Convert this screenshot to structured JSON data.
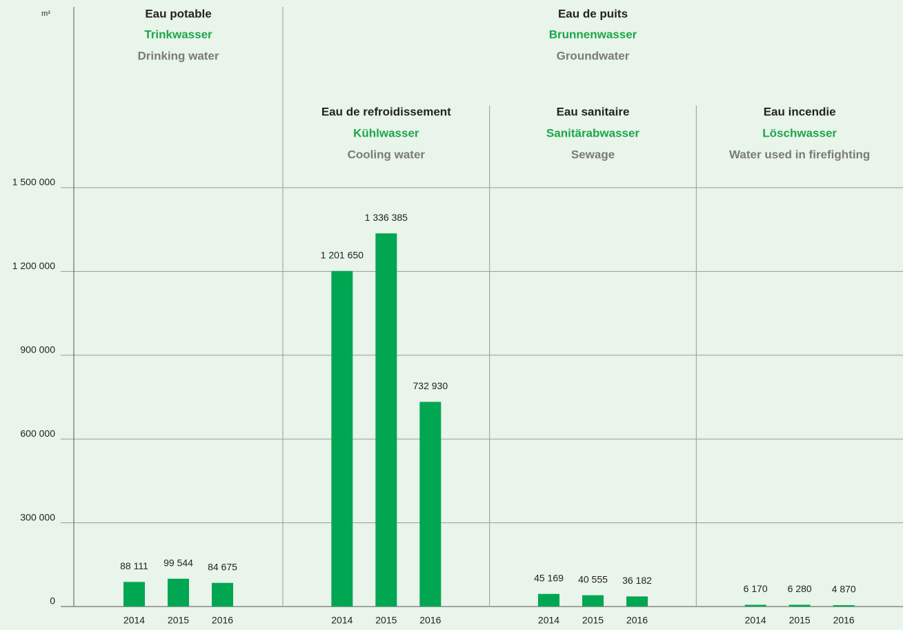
{
  "chart_data": {
    "type": "bar",
    "y_label": "m³",
    "color": "#00a651",
    "ylim": [
      0,
      1500000
    ],
    "yticks": [
      0,
      {
        "value": 300000,
        "label": "300 000"
      },
      {
        "value": 600000,
        "label": "600 000"
      },
      {
        "value": 900000,
        "label": "900 000"
      },
      {
        "value": 1200000,
        "label": "1 200 000"
      },
      {
        "value": 1500000,
        "label": "1 500 000"
      }
    ],
    "grid": true,
    "panels": [
      {
        "fr": "Eau potable",
        "de": "Trinkwasser",
        "en": "Drinking water",
        "categories": [
          "2014",
          "2015",
          "2016"
        ],
        "values": [
          88111,
          99544,
          84675
        ],
        "value_labels": [
          "88 111",
          "99 544",
          "84 675"
        ]
      },
      {
        "fr": "Eau de puits",
        "de": "Brunnenwasser",
        "en": "Groundwater",
        "subpanels": [
          {
            "fr": "Eau de refroidissement",
            "de": "Kühlwasser",
            "en": "Cooling water",
            "categories": [
              "2014",
              "2015",
              "2016"
            ],
            "values": [
              1201650,
              1336385,
              732930
            ],
            "value_labels": [
              "1 201 650",
              "1 336 385",
              "732 930"
            ]
          },
          {
            "fr": "Eau sanitaire",
            "de": "Sanitärabwasser",
            "en": "Sewage",
            "categories": [
              "2014",
              "2015",
              "2016"
            ],
            "values": [
              45169,
              40555,
              36182
            ],
            "value_labels": [
              "45 169",
              "40 555",
              "36 182"
            ]
          },
          {
            "fr": "Eau incendie",
            "de": "Löschwasser",
            "en": "Water used in firefighting",
            "categories": [
              "2014",
              "2015",
              "2016"
            ],
            "values": [
              6170,
              6280,
              4870
            ],
            "value_labels": [
              "6 170",
              "6 280",
              "4 870"
            ]
          }
        ]
      }
    ]
  }
}
